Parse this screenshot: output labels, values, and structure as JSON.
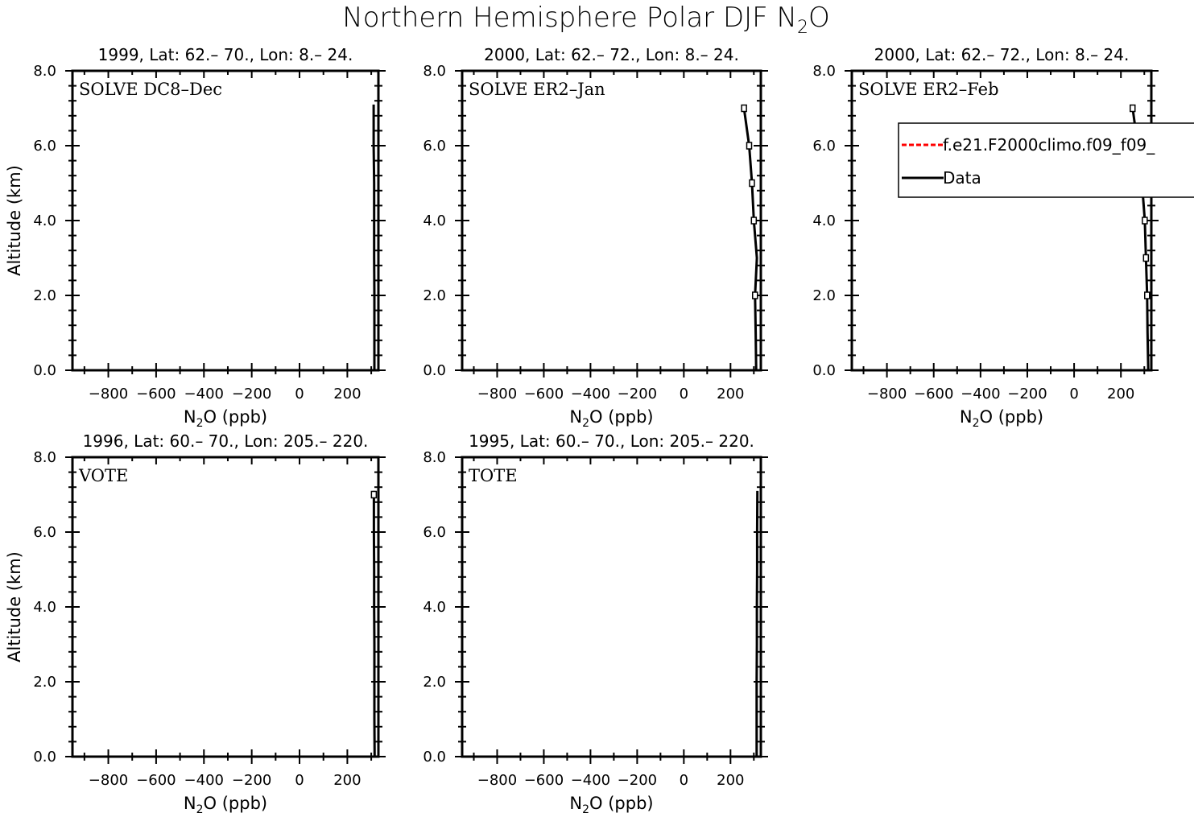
{
  "figure": {
    "title_main": "Northern Hemisphere Polar DJF N",
    "title_sub": "2",
    "title_end": "O"
  },
  "legend": {
    "entries": [
      {
        "label": "f.e21.F2000climo.f09_f09_",
        "color": "#ff0000",
        "dash": true
      },
      {
        "label": "Data",
        "color": "#000000",
        "dash": false
      }
    ]
  },
  "chart_data": [
    {
      "type": "line",
      "header": "1999, Lat: 62.– 70., Lon: 8.– 24.",
      "campaign": "SOLVE DC8–Dec",
      "xlabel_main": "N",
      "xlabel_sub": "2",
      "xlabel_end": "O (ppb)",
      "ylabel": "Altitude (km)",
      "xlim": [
        -950,
        330
      ],
      "ylim": [
        0,
        8
      ],
      "xticks": [
        {
          "v": -800,
          "t": "−800"
        },
        {
          "v": -600,
          "t": "−600"
        },
        {
          "v": -400,
          "t": "−400"
        },
        {
          "v": -200,
          "t": "−200"
        },
        {
          "v": 0,
          "t": "0"
        },
        {
          "v": 200,
          "t": "200"
        }
      ],
      "yticks": [
        {
          "v": 0,
          "t": "0.0"
        },
        {
          "v": 2,
          "t": "2.0"
        },
        {
          "v": 4,
          "t": "4.0"
        },
        {
          "v": 6,
          "t": "6.0"
        },
        {
          "v": 8,
          "t": "8.0"
        }
      ],
      "series": [
        {
          "color": "#000000",
          "points": [
            [
              313,
              0
            ],
            [
              313,
              1
            ],
            [
              313,
              2
            ],
            [
              312,
              3
            ],
            [
              312,
              4
            ],
            [
              312,
              5
            ],
            [
              310,
              6
            ],
            [
              310,
              7.1
            ]
          ]
        }
      ],
      "markers": []
    },
    {
      "type": "line",
      "header": "2000, Lat: 62.– 72., Lon: 8.– 24.",
      "campaign": "SOLVE ER2–Jan",
      "xlabel_main": "N",
      "xlabel_sub": "2",
      "xlabel_end": "O (ppb)",
      "ylabel": "",
      "xlim": [
        -950,
        330
      ],
      "ylim": [
        0,
        8
      ],
      "xticks": [
        {
          "v": -800,
          "t": "−800"
        },
        {
          "v": -600,
          "t": "−600"
        },
        {
          "v": -400,
          "t": "−400"
        },
        {
          "v": -200,
          "t": "−200"
        },
        {
          "v": 0,
          "t": "0"
        },
        {
          "v": 200,
          "t": "200"
        }
      ],
      "yticks": [
        {
          "v": 0,
          "t": "0.0"
        },
        {
          "v": 2,
          "t": "2.0"
        },
        {
          "v": 4,
          "t": "4.0"
        },
        {
          "v": 6,
          "t": "6.0"
        },
        {
          "v": 8,
          "t": "8.0"
        }
      ],
      "series": [
        {
          "color": "#000000",
          "points": [
            [
              310,
              0
            ],
            [
              308,
              1
            ],
            [
              305,
              2
            ],
            [
              313,
              3
            ],
            [
              300,
              4
            ],
            [
              292,
              5
            ],
            [
              280,
              6
            ],
            [
              258,
              7
            ]
          ]
        }
      ],
      "markers": [
        [
          305,
          2
        ],
        [
          300,
          4
        ],
        [
          292,
          5
        ],
        [
          280,
          6
        ],
        [
          258,
          7
        ]
      ]
    },
    {
      "type": "line",
      "header": "2000, Lat: 62.– 72., Lon: 8.– 24.",
      "campaign": "SOLVE ER2–Feb",
      "xlabel_main": "N",
      "xlabel_sub": "2",
      "xlabel_end": "O (ppb)",
      "ylabel": "",
      "xlim": [
        -950,
        330
      ],
      "ylim": [
        0,
        8
      ],
      "xticks": [
        {
          "v": -800,
          "t": "−800"
        },
        {
          "v": -600,
          "t": "−600"
        },
        {
          "v": -400,
          "t": "−400"
        },
        {
          "v": -200,
          "t": "−200"
        },
        {
          "v": 0,
          "t": "0"
        },
        {
          "v": 200,
          "t": "200"
        }
      ],
      "yticks": [
        {
          "v": 0,
          "t": "0.0"
        },
        {
          "v": 2,
          "t": "2.0"
        },
        {
          "v": 4,
          "t": "4.0"
        },
        {
          "v": 6,
          "t": "6.0"
        },
        {
          "v": 8,
          "t": "8.0"
        }
      ],
      "series": [
        {
          "color": "#000000",
          "points": [
            [
              317,
              0
            ],
            [
              314,
              1
            ],
            [
              312,
              2
            ],
            [
              307,
              3
            ],
            [
              302,
              4
            ],
            [
              290,
              5
            ],
            [
              272,
              6
            ],
            [
              250,
              7
            ]
          ]
        }
      ],
      "markers": [
        [
          312,
          2
        ],
        [
          307,
          3
        ],
        [
          302,
          4
        ],
        [
          290,
          5
        ],
        [
          250,
          7
        ]
      ]
    },
    {
      "type": "line",
      "header": "1996, Lat: 60.– 70., Lon: 205.– 220.",
      "campaign": "VOTE",
      "xlabel_main": "N",
      "xlabel_sub": "2",
      "xlabel_end": "O (ppb)",
      "ylabel": "Altitude (km)",
      "xlim": [
        -950,
        330
      ],
      "ylim": [
        0,
        8
      ],
      "xticks": [
        {
          "v": -800,
          "t": "−800"
        },
        {
          "v": -600,
          "t": "−600"
        },
        {
          "v": -400,
          "t": "−400"
        },
        {
          "v": -200,
          "t": "−200"
        },
        {
          "v": 0,
          "t": "0"
        },
        {
          "v": 200,
          "t": "200"
        }
      ],
      "yticks": [
        {
          "v": 0,
          "t": "0.0"
        },
        {
          "v": 2,
          "t": "2.0"
        },
        {
          "v": 4,
          "t": "4.0"
        },
        {
          "v": 6,
          "t": "6.0"
        },
        {
          "v": 8,
          "t": "8.0"
        }
      ],
      "series": [
        {
          "color": "#000000",
          "points": [
            [
              314,
              0
            ],
            [
              313,
              1
            ],
            [
              313,
              2
            ],
            [
              313,
              3
            ],
            [
              312,
              4
            ],
            [
              312,
              5
            ],
            [
              311,
              6
            ],
            [
              311,
              7.1
            ]
          ]
        }
      ],
      "markers": [
        [
          311,
          7
        ]
      ]
    },
    {
      "type": "line",
      "header": "1995, Lat: 60.– 70., Lon: 205.– 220.",
      "campaign": "TOTE",
      "xlabel_main": "N",
      "xlabel_sub": "2",
      "xlabel_end": "O (ppb)",
      "ylabel": "",
      "xlim": [
        -950,
        330
      ],
      "ylim": [
        0,
        8
      ],
      "xticks": [
        {
          "v": -800,
          "t": "−800"
        },
        {
          "v": -600,
          "t": "−600"
        },
        {
          "v": -400,
          "t": "−400"
        },
        {
          "v": -200,
          "t": "−200"
        },
        {
          "v": 0,
          "t": "0"
        },
        {
          "v": 200,
          "t": "200"
        }
      ],
      "yticks": [
        {
          "v": 0,
          "t": "0.0"
        },
        {
          "v": 2,
          "t": "2.0"
        },
        {
          "v": 4,
          "t": "4.0"
        },
        {
          "v": 6,
          "t": "6.0"
        },
        {
          "v": 8,
          "t": "8.0"
        }
      ],
      "series": [
        {
          "color": "#000000",
          "points": [
            [
              312,
              0
            ],
            [
              312,
              1
            ],
            [
              312,
              2
            ],
            [
              313,
              3
            ],
            [
              313,
              4
            ],
            [
              314,
              5
            ],
            [
              314,
              6
            ],
            [
              315,
              7.1
            ]
          ]
        }
      ],
      "markers": []
    }
  ]
}
